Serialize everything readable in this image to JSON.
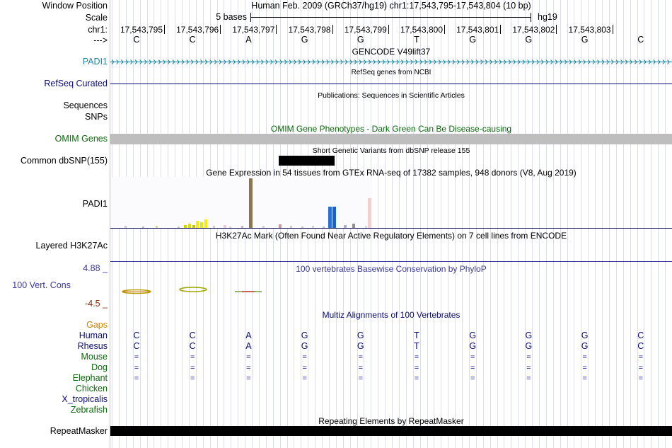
{
  "labels": {
    "window_position": "Window Position",
    "scale": "Scale",
    "chrom": "chr1:",
    "strand": "--->",
    "padi1_gencode": "PADI1",
    "refseq": "RefSeq Curated",
    "sequences": "Sequences",
    "snps": "SNPs",
    "omim": "OMIM Genes",
    "dbsnp": "Common dbSNP(155)",
    "gtex": "PADI1",
    "h3k27ac": "Layered H3K27Ac",
    "cons_max": "4.88 _",
    "cons_name": "100 Vert. Cons",
    "cons_min": "-4.5 _",
    "gaps": "Gaps",
    "species": [
      "Human",
      "Rhesus",
      "Mouse",
      "Dog",
      "Elephant",
      "Chicken",
      "X_tropicalis",
      "Zebrafish"
    ],
    "repeatmasker": "RepeatMasker"
  },
  "header": {
    "position_text": "Human Feb. 2009 (GRCh37/hg19)   chr1:17,543,795-17,543,804 (10 bp)",
    "scale_text": "5 bases",
    "assembly": "hg19"
  },
  "coordinates": [
    "17,543,795",
    "17,543,796",
    "17,543,797",
    "17,543,798",
    "17,543,799",
    "17,543,800",
    "17,543,801",
    "17,543,802",
    "17,543,803"
  ],
  "bases": [
    "C",
    "C",
    "A",
    "G",
    "G",
    "T",
    "G",
    "G",
    "G",
    "C"
  ],
  "track_titles": {
    "gencode": "GENCODE V49lift37",
    "refseq": "RefSeq genes from NCBI",
    "publications": "Publications: Sequences in Scientific Articles",
    "omim": "OMIM Gene Phenotypes - Dark Green Can Be Disease-causing",
    "dbsnp": "Short Genetic Variants from dbSNP release 155",
    "gtex": "Gene Expression in 54 tissues from GTEx RNA-seq of 17382 samples, 948 donors (V8, Aug 2019)",
    "h3k27ac": "H3K27Ac Mark (Often Found Near Active Regulatory Elements) on 7 cell lines from ENCODE",
    "phylop": "100 vertebrates Basewise Conservation by PhyloP",
    "multiz": "Multiz Alignments of 100 Vertebrates",
    "repeatmasker": "Repeating Elements by RepeatMasker"
  },
  "alignment": {
    "Human": [
      "C",
      "C",
      "A",
      "G",
      "G",
      "T",
      "G",
      "G",
      "G",
      "C"
    ],
    "Rhesus": [
      "C",
      "C",
      "A",
      "G",
      "G",
      "T",
      "G",
      "G",
      "G",
      "C"
    ],
    "Mouse": [
      "=",
      "=",
      "=",
      "=",
      "=",
      "=",
      "=",
      "=",
      "=",
      "="
    ],
    "Dog": [
      "=",
      "=",
      "=",
      "=",
      "=",
      "=",
      "=",
      "=",
      "=",
      "="
    ],
    "Elephant": [
      "=",
      "=",
      "=",
      "=",
      "=",
      "=",
      "=",
      "=",
      "=",
      "="
    ]
  },
  "colors": {
    "gencode": "#1a8aa8",
    "refseq": "#0c0c78",
    "omim_label": "#0a6a0a",
    "omim_bar": "#bebebe",
    "phylop_label": "#3a3a9a",
    "cons_max": "#3a3a9a",
    "cons_min": "#8a2a00",
    "gaps": "#d08000",
    "species_blue": "#0c0c78",
    "species_green": "#0a6a0a",
    "grid": "#dbdcf0"
  }
}
